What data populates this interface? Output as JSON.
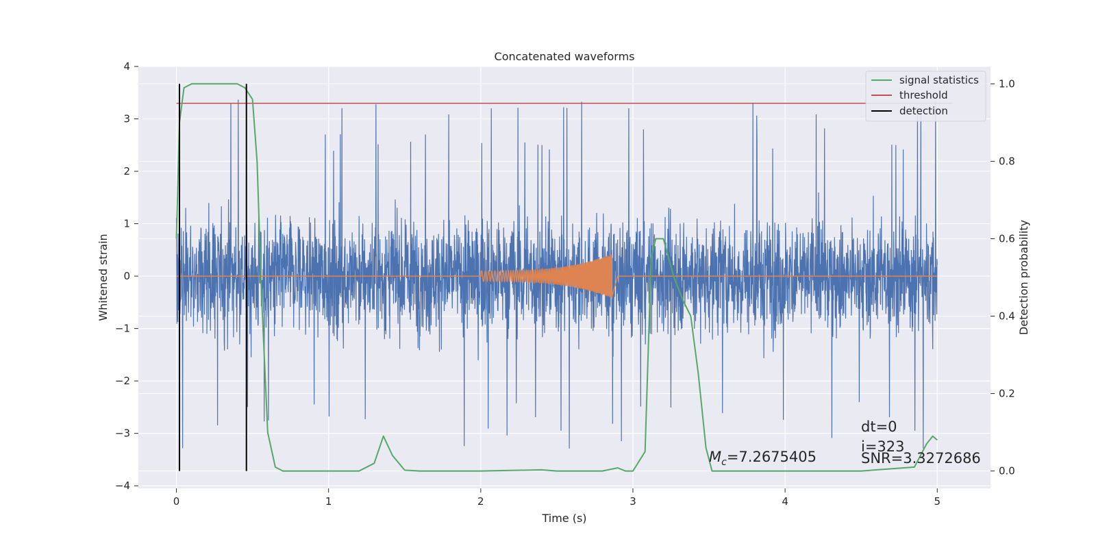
{
  "chart_data": {
    "type": "line",
    "title": "Concatenated waveforms",
    "xlabel": "Time (s)",
    "ylabel_left": "Whitened strain",
    "ylabel_right": "Detection probability",
    "xlim": [
      -0.25,
      5.35
    ],
    "ylim_left": [
      -4.05,
      4.0
    ],
    "ylim_right": [
      -0.045,
      1.045
    ],
    "xticks": [
      0,
      1,
      2,
      3,
      4,
      5
    ],
    "xtick_labels": [
      "0",
      "1",
      "2",
      "3",
      "4",
      "5"
    ],
    "yticks_left": [
      -4,
      -3,
      -2,
      -1,
      0,
      1,
      2,
      3,
      4
    ],
    "ytick_labels_left": [
      "−4",
      "−3",
      "−2",
      "−1",
      "0",
      "1",
      "2",
      "3",
      "4"
    ],
    "yticks_right": [
      0.0,
      0.2,
      0.4,
      0.6,
      0.8,
      1.0
    ],
    "ytick_labels_right": [
      "0.0",
      "0.2",
      "0.4",
      "0.6",
      "0.8",
      "1.0"
    ],
    "grid": true,
    "legend_position": "top-right",
    "colors": {
      "background": "#eaeaf2",
      "grid": "#ffffff",
      "noise": "#4c72b0",
      "template": "#dd8452",
      "signal_statistics": "#55a868",
      "threshold": "#c44e52",
      "detection": "#000000"
    },
    "series": [
      {
        "name": "whitened strain (noise + signal)",
        "axis": "left",
        "description_values": "dense noise, amplitude ~±2.5, spikes to ~3.6 and ~-3.7",
        "x_range": [
          0,
          5
        ],
        "typical_abs": 1.2,
        "max_peak": 3.62,
        "min_peak": -3.7
      },
      {
        "name": "chirp template",
        "axis": "left",
        "x_range": [
          2.0,
          2.9
        ],
        "amplitude_start": 0.1,
        "amplitude_peak": 0.42,
        "peak_time": 2.86
      },
      {
        "name": "signal statistics",
        "axis": "right",
        "x": [
          0.0,
          0.02,
          0.05,
          0.1,
          0.2,
          0.3,
          0.4,
          0.45,
          0.5,
          0.53,
          0.56,
          0.6,
          0.65,
          0.7,
          1.0,
          1.2,
          1.3,
          1.36,
          1.42,
          1.5,
          1.6,
          2.0,
          2.4,
          2.5,
          2.8,
          2.9,
          2.95,
          3.0,
          3.08,
          3.12,
          3.15,
          3.2,
          3.27,
          3.33,
          3.38,
          3.43,
          3.48,
          3.52,
          3.6,
          4.0,
          4.5,
          4.85,
          4.93,
          4.97,
          5.0
        ],
        "y": [
          0.6,
          0.9,
          0.99,
          1.0,
          1.0,
          1.0,
          1.0,
          0.99,
          0.96,
          0.8,
          0.45,
          0.1,
          0.01,
          0.0,
          0.0,
          0.0,
          0.02,
          0.09,
          0.04,
          0.002,
          0.0,
          0.0,
          0.003,
          0.0,
          0.0,
          0.008,
          0.0,
          0.0,
          0.05,
          0.55,
          0.6,
          0.6,
          0.5,
          0.44,
          0.4,
          0.25,
          0.06,
          0.0,
          0.0,
          0.0,
          0.0,
          0.01,
          0.07,
          0.09,
          0.08
        ]
      },
      {
        "name": "threshold",
        "axis": "right",
        "x": [
          0.0,
          5.1
        ],
        "y": [
          0.95,
          0.95
        ]
      },
      {
        "name": "detection",
        "axis": "right",
        "x_lines": [
          0.02,
          0.46
        ],
        "y_range": [
          0.0,
          1.0
        ]
      }
    ],
    "legend": [
      {
        "label": "signal statistics",
        "color": "#55a868"
      },
      {
        "label": "threshold",
        "color": "#c44e52"
      },
      {
        "label": "detection",
        "color": "#000000"
      }
    ],
    "annotations": {
      "mc_prefix": "M",
      "mc_sub": "c",
      "mc_value": "=7.2675405",
      "dt": "dt=0",
      "i": "i=323",
      "snr": "SNR=3.3272686"
    }
  }
}
